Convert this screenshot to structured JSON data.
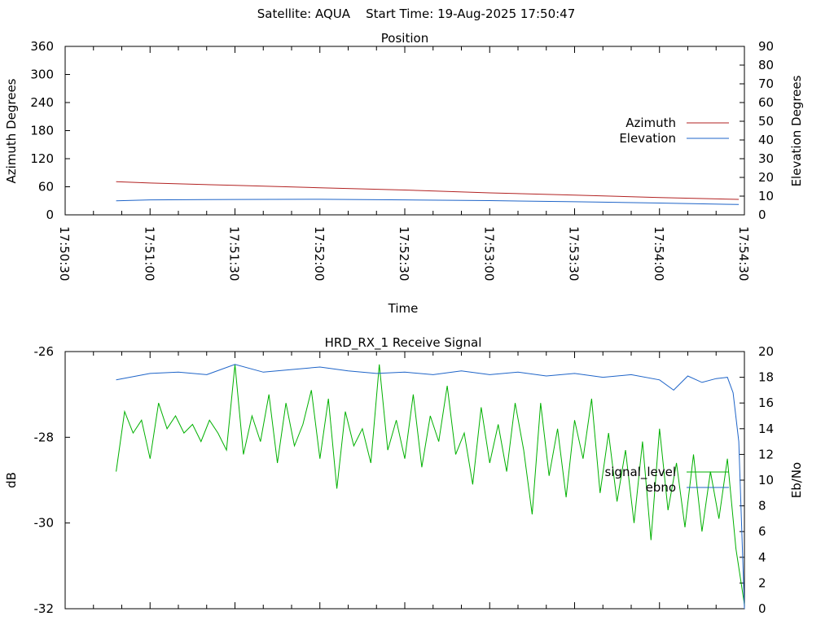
{
  "header": {
    "title": "Satellite: AQUA    Start Time: 19-Aug-2025 17:50:47"
  },
  "colors": {
    "azimuth": "#b22222",
    "elevation": "#1e64c8",
    "signal_level": "#00b000",
    "ebno": "#1e64c8"
  },
  "chart_data": [
    {
      "type": "line",
      "title": "Position",
      "xlabel": "Time",
      "ylabel": "Azimuth Degrees",
      "y2label": "Elevation Degrees",
      "x_ticks": [
        "17:50:30",
        "17:51:00",
        "17:51:30",
        "17:52:00",
        "17:52:30",
        "17:53:00",
        "17:53:30",
        "17:54:00",
        "17:54:30"
      ],
      "xlim": [
        "17:50:30",
        "17:54:30"
      ],
      "ylim": [
        0,
        360
      ],
      "y_ticks": [
        0,
        60,
        120,
        180,
        240,
        300,
        360
      ],
      "y2lim": [
        0,
        90
      ],
      "y2_ticks": [
        0,
        10,
        20,
        30,
        40,
        50,
        60,
        70,
        80,
        90
      ],
      "legend_position": "right",
      "series": [
        {
          "name": "Azimuth",
          "axis": "left",
          "x": [
            "17:50:48",
            "17:51:00",
            "17:51:30",
            "17:52:00",
            "17:52:30",
            "17:53:00",
            "17:53:30",
            "17:54:00",
            "17:54:28"
          ],
          "y": [
            71,
            68,
            63,
            58,
            53,
            47,
            42,
            37,
            33
          ]
        },
        {
          "name": "Elevation",
          "axis": "right",
          "x": [
            "17:50:48",
            "17:51:00",
            "17:51:30",
            "17:52:00",
            "17:52:30",
            "17:53:00",
            "17:53:30",
            "17:54:00",
            "17:54:28"
          ],
          "y": [
            7.5,
            8,
            8.2,
            8.3,
            8,
            7.6,
            7,
            6.3,
            5.5
          ]
        }
      ]
    },
    {
      "type": "line",
      "title": "HRD_RX_1 Receive Signal",
      "ylabel": "dB",
      "y2label": "Eb/No",
      "xlim": [
        "17:50:30",
        "17:54:30"
      ],
      "ylim": [
        -32,
        -26
      ],
      "y_ticks": [
        -32,
        -30,
        -28,
        -26
      ],
      "y2lim": [
        0,
        20
      ],
      "y2_ticks": [
        0,
        2,
        4,
        6,
        8,
        10,
        12,
        14,
        16,
        18,
        20
      ],
      "legend_position": "right",
      "series": [
        {
          "name": "signal_level",
          "axis": "left",
          "x": [
            "17:50:48",
            "17:50:51",
            "17:50:54",
            "17:50:57",
            "17:51:00",
            "17:51:03",
            "17:51:06",
            "17:51:09",
            "17:51:12",
            "17:51:15",
            "17:51:18",
            "17:51:21",
            "17:51:24",
            "17:51:27",
            "17:51:30",
            "17:51:33",
            "17:51:36",
            "17:51:39",
            "17:51:42",
            "17:51:45",
            "17:51:48",
            "17:51:51",
            "17:51:54",
            "17:51:57",
            "17:52:00",
            "17:52:03",
            "17:52:06",
            "17:52:09",
            "17:52:12",
            "17:52:15",
            "17:52:18",
            "17:52:21",
            "17:52:24",
            "17:52:27",
            "17:52:30",
            "17:52:33",
            "17:52:36",
            "17:52:39",
            "17:52:42",
            "17:52:45",
            "17:52:48",
            "17:52:51",
            "17:52:54",
            "17:52:57",
            "17:53:00",
            "17:53:03",
            "17:53:06",
            "17:53:09",
            "17:53:12",
            "17:53:15",
            "17:53:18",
            "17:53:21",
            "17:53:24",
            "17:53:27",
            "17:53:30",
            "17:53:33",
            "17:53:36",
            "17:53:39",
            "17:53:42",
            "17:53:45",
            "17:53:48",
            "17:53:51",
            "17:53:54",
            "17:53:57",
            "17:54:00",
            "17:54:03",
            "17:54:06",
            "17:54:09",
            "17:54:12",
            "17:54:15",
            "17:54:18",
            "17:54:21",
            "17:54:24",
            "17:54:27",
            "17:54:30"
          ],
          "y": [
            -28.8,
            -27.4,
            -27.9,
            -27.6,
            -28.5,
            -27.2,
            -27.8,
            -27.5,
            -27.9,
            -27.7,
            -28.1,
            -27.6,
            -27.9,
            -28.3,
            -26.3,
            -28.4,
            -27.5,
            -28.1,
            -27.0,
            -28.6,
            -27.2,
            -28.2,
            -27.7,
            -26.9,
            -28.5,
            -27.1,
            -29.2,
            -27.4,
            -28.2,
            -27.8,
            -28.6,
            -26.3,
            -28.3,
            -27.6,
            -28.5,
            -27.0,
            -28.7,
            -27.5,
            -28.1,
            -26.8,
            -28.4,
            -27.9,
            -29.1,
            -27.3,
            -28.6,
            -27.7,
            -28.8,
            -27.2,
            -28.3,
            -29.8,
            -27.2,
            -28.9,
            -27.8,
            -29.4,
            -27.6,
            -28.5,
            -27.1,
            -29.3,
            -27.9,
            -29.5,
            -28.3,
            -30.0,
            -28.1,
            -30.4,
            -27.8,
            -29.7,
            -28.6,
            -30.1,
            -28.4,
            -30.2,
            -28.8,
            -29.9,
            -28.5,
            -30.6,
            -31.9
          ]
        },
        {
          "name": "ebno",
          "axis": "right",
          "x": [
            "17:50:48",
            "17:51:00",
            "17:51:10",
            "17:51:20",
            "17:51:30",
            "17:51:40",
            "17:51:50",
            "17:52:00",
            "17:52:10",
            "17:52:20",
            "17:52:30",
            "17:52:40",
            "17:52:50",
            "17:53:00",
            "17:53:10",
            "17:53:20",
            "17:53:30",
            "17:53:40",
            "17:53:50",
            "17:54:00",
            "17:54:05",
            "17:54:10",
            "17:54:15",
            "17:54:20",
            "17:54:24",
            "17:54:26",
            "17:54:28",
            "17:54:30"
          ],
          "y": [
            17.8,
            18.3,
            18.4,
            18.2,
            19.0,
            18.4,
            18.6,
            18.8,
            18.5,
            18.3,
            18.4,
            18.2,
            18.5,
            18.2,
            18.4,
            18.1,
            18.3,
            18.0,
            18.2,
            17.8,
            17.0,
            18.1,
            17.6,
            17.9,
            18.0,
            16.8,
            13.0,
            0.0
          ]
        }
      ]
    }
  ]
}
